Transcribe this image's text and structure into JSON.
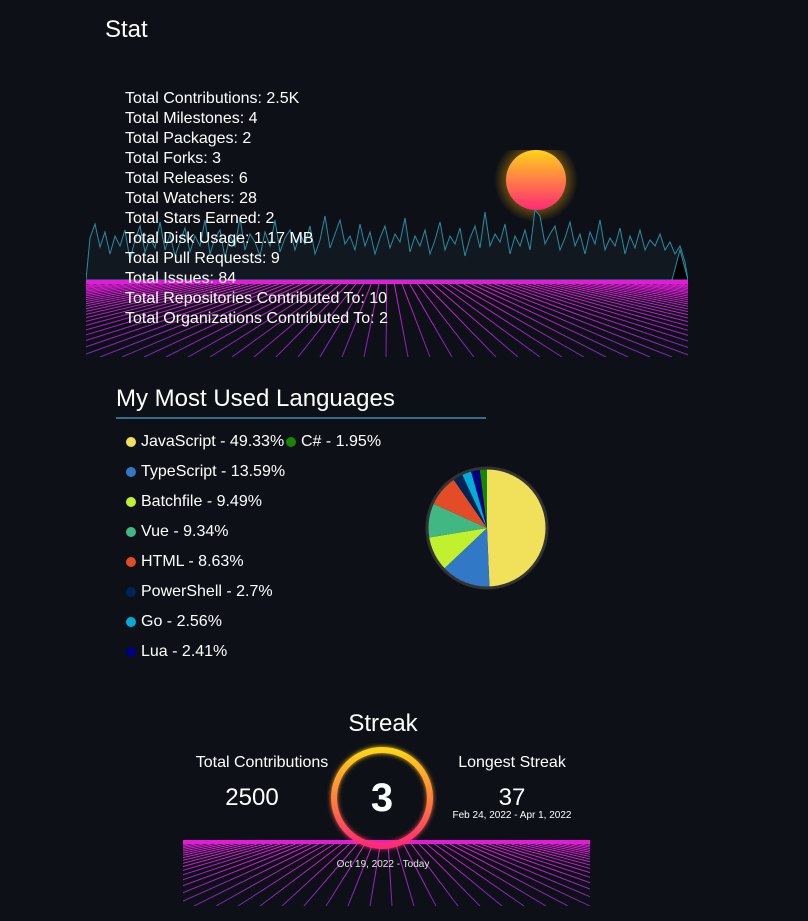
{
  "stat": {
    "title": "Stat",
    "items": [
      "Total Contributions: 2.5K",
      "Total Milestones: 4",
      "Total Packages: 2",
      "Total Forks: 3",
      "Total Releases: 6",
      "Total Watchers: 28",
      "Total Stars Earned: 2",
      "Total Disk Usage: 1.17 MB",
      "Total Pull Requests: 9",
      "Total Issues: 84",
      "Total Repositories Contributed To: 10",
      "Total Organizations Contributed To: 2"
    ]
  },
  "languages": {
    "title": "My Most Used Languages",
    "items": [
      {
        "label": "JavaScript - 49.33%",
        "name": "JavaScript",
        "value": 49.33,
        "color": "#f1e05a"
      },
      {
        "label": "C# - 1.95%",
        "name": "C#",
        "value": 1.95,
        "color": "#178600"
      },
      {
        "label": "TypeScript - 13.59%",
        "name": "TypeScript",
        "value": 13.59,
        "color": "#3178c6"
      },
      {
        "label": "Batchfile - 9.49%",
        "name": "Batchfile",
        "value": 9.49,
        "color": "#c1f12e"
      },
      {
        "label": "Vue - 9.34%",
        "name": "Vue",
        "value": 9.34,
        "color": "#41b883"
      },
      {
        "label": "HTML - 8.63%",
        "name": "HTML",
        "value": 8.63,
        "color": "#e34c26"
      },
      {
        "label": "PowerShell - 2.7%",
        "name": "PowerShell",
        "value": 2.7,
        "color": "#012456"
      },
      {
        "label": "Go - 2.56%",
        "name": "Go",
        "value": 2.56,
        "color": "#00add8"
      },
      {
        "label": "Lua - 2.41%",
        "name": "Lua",
        "value": 2.41,
        "color": "#000080"
      }
    ]
  },
  "streak": {
    "title": "Streak",
    "total_label": "Total Contributions",
    "total_value": "2500",
    "current_value": "3",
    "current_range": "Oct 19, 2022 - Today",
    "longest_label": "Longest Streak",
    "longest_value": "37",
    "longest_range": "Feb 24, 2022 - Apr 1, 2022"
  },
  "colors": {
    "background": "#0d1117",
    "grid": "#c42bd8",
    "mountain": "#2a8aa0",
    "sun_top": "#ffd319",
    "sun_bottom": "#ff2975"
  }
}
